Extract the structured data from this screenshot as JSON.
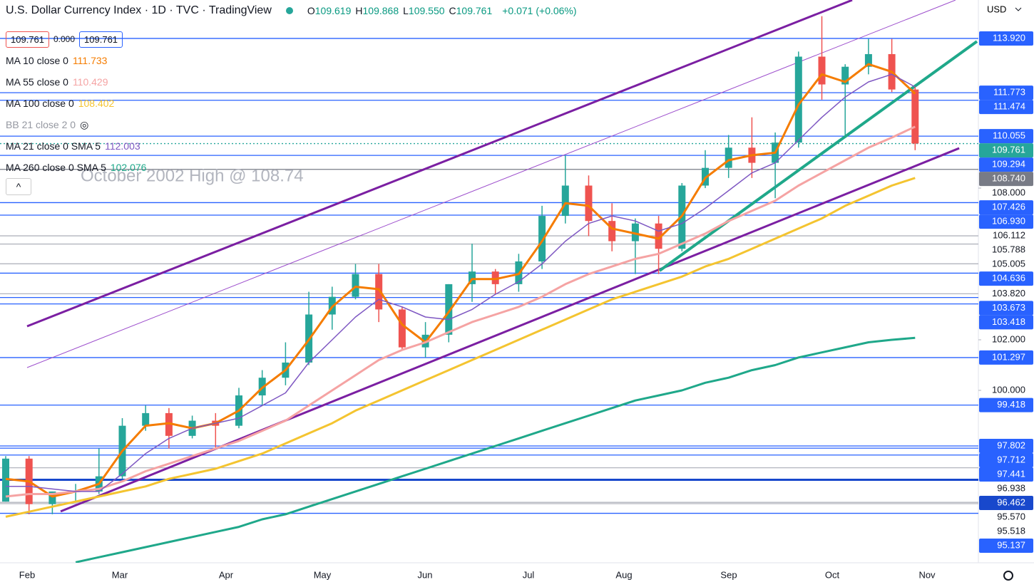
{
  "header": {
    "ohlc": [
      {
        "key": "O",
        "value": "109.619"
      },
      {
        "key": "H",
        "value": "109.868"
      },
      {
        "key": "L",
        "value": "109.550"
      },
      {
        "key": "C",
        "value": "109.761"
      }
    ],
    "change": "+0.071 (+0.06%)",
    "price_boxes": [
      "109.761",
      "0.000",
      "109.761"
    ],
    "currency": "USD",
    "extra_indicator": "BB 21 close 2 0"
  },
  "chart_data": {
    "type": "candlestick",
    "title": "U.S. Dollar Currency Index · 1D · TVC · TradingView",
    "annotation": "October 2002 High @ 108.74",
    "x_labels": [
      "Feb",
      "Mar",
      "Apr",
      "May",
      "Jun",
      "Jul",
      "Aug",
      "Sep",
      "Oct",
      "Nov"
    ],
    "candles": {
      "open": [
        95.6,
        97.3,
        95.5,
        96.0,
        96.0,
        96.6,
        98.6,
        99.1,
        98.2,
        98.8,
        98.6,
        99.8,
        100.5,
        101.1,
        103.0,
        103.7,
        104.6,
        103.2,
        101.7,
        102.2,
        104.2,
        104.7,
        104.2,
        105.1,
        106.9,
        108.1,
        106.7,
        105.9,
        106.6,
        105.6,
        108.1,
        108.8,
        109.6,
        109.0,
        109.8,
        113.2,
        112.1,
        112.8,
        113.3,
        111.9
      ],
      "high": [
        97.4,
        97.4,
        96.0,
        96.3,
        97.7,
        98.9,
        99.4,
        99.3,
        99.0,
        99.1,
        100.1,
        100.8,
        101.9,
        103.9,
        104.1,
        105.0,
        105.0,
        103.3,
        102.7,
        104.2,
        105.8,
        104.8,
        105.4,
        107.3,
        109.3,
        108.5,
        107.4,
        106.8,
        106.9,
        108.2,
        109.5,
        110.1,
        110.8,
        110.2,
        113.4,
        114.8,
        112.9,
        113.9,
        113.9,
        112.0
      ],
      "low": [
        95.6,
        95.1,
        95.1,
        95.6,
        95.9,
        96.5,
        98.4,
        97.7,
        98.1,
        97.7,
        98.5,
        99.4,
        100.2,
        101.0,
        102.4,
        103.6,
        102.7,
        101.6,
        101.3,
        101.9,
        103.5,
        103.8,
        103.9,
        104.8,
        106.6,
        106.1,
        105.5,
        104.6,
        104.6,
        105.5,
        108.0,
        108.4,
        108.4,
        107.6,
        109.6,
        111.5,
        110.1,
        112.5,
        111.8,
        109.5
      ],
      "close": [
        97.3,
        95.5,
        96.0,
        96.0,
        96.6,
        98.6,
        99.1,
        98.2,
        98.8,
        98.6,
        99.8,
        100.5,
        101.1,
        103.0,
        103.7,
        104.6,
        103.2,
        101.7,
        102.2,
        104.2,
        104.7,
        104.2,
        105.1,
        106.9,
        108.1,
        106.7,
        105.9,
        106.6,
        105.6,
        108.1,
        108.8,
        109.6,
        109.0,
        109.8,
        113.2,
        112.1,
        112.8,
        113.3,
        111.9,
        109.761
      ]
    },
    "up_color": "#26a69a",
    "down_color": "#ef5350",
    "series": [
      {
        "name": "MA 10 close 0",
        "color": "#f57c00",
        "width": 3,
        "values": [
          96.5,
          96.4,
          95.8,
          96.0,
          96.3,
          97.6,
          98.6,
          98.7,
          98.5,
          98.7,
          99.2,
          100.1,
          100.8,
          102.0,
          103.3,
          104.1,
          104.0,
          102.6,
          101.9,
          103.1,
          104.4,
          104.4,
          104.6,
          105.9,
          107.4,
          107.3,
          106.4,
          106.2,
          106.0,
          106.9,
          108.4,
          109.1,
          109.3,
          109.4,
          111.3,
          112.5,
          112.2,
          112.9,
          112.6,
          111.733
        ]
      },
      {
        "name": "MA 55 close 0",
        "color": "#f5a3a3",
        "width": 3,
        "values": [
          95.8,
          95.9,
          95.9,
          96.0,
          96.1,
          96.4,
          96.8,
          97.1,
          97.4,
          97.7,
          98.0,
          98.4,
          98.8,
          99.4,
          100.0,
          100.6,
          101.2,
          101.6,
          101.9,
          102.3,
          102.7,
          103.0,
          103.3,
          103.7,
          104.2,
          104.6,
          104.9,
          105.2,
          105.4,
          105.8,
          106.2,
          106.7,
          107.1,
          107.5,
          108.1,
          108.6,
          109.1,
          109.6,
          110.0,
          110.429
        ]
      },
      {
        "name": "MA 100 close 0",
        "color": "#f4c430",
        "width": 3,
        "values": [
          95.0,
          95.2,
          95.4,
          95.6,
          95.8,
          96.0,
          96.2,
          96.5,
          96.7,
          96.9,
          97.2,
          97.5,
          97.9,
          98.3,
          98.7,
          99.2,
          99.6,
          100.0,
          100.4,
          100.8,
          101.2,
          101.6,
          102.0,
          102.4,
          102.8,
          103.2,
          103.6,
          103.9,
          104.2,
          104.5,
          104.9,
          105.2,
          105.6,
          106.0,
          106.4,
          106.8,
          107.3,
          107.7,
          108.1,
          108.402
        ]
      },
      {
        "name": "MA 21 close 0 SMA 5",
        "color": "#7e57c2",
        "width": 1.5,
        "values": [
          96.2,
          96.2,
          96.1,
          96.0,
          96.0,
          96.7,
          97.5,
          98.1,
          98.5,
          98.7,
          98.9,
          99.4,
          99.9,
          101.1,
          102.0,
          102.9,
          103.6,
          103.3,
          102.9,
          102.8,
          103.2,
          103.8,
          104.3,
          105.0,
          105.9,
          106.6,
          106.9,
          106.7,
          106.3,
          106.6,
          107.2,
          107.9,
          108.6,
          109.0,
          109.9,
          110.8,
          111.6,
          112.2,
          112.5,
          112.003
        ]
      },
      {
        "name": "MA 260 close 0 SMA 5",
        "color": "#1fa88a",
        "width": 3,
        "values": [
          null,
          null,
          null,
          93.2,
          93.4,
          93.6,
          93.8,
          94.0,
          94.2,
          94.4,
          94.6,
          94.9,
          95.1,
          95.4,
          95.7,
          96.0,
          96.3,
          96.6,
          96.9,
          97.2,
          97.5,
          97.8,
          98.1,
          98.4,
          98.7,
          99.0,
          99.3,
          99.6,
          99.8,
          100.0,
          100.3,
          100.5,
          100.8,
          101.0,
          101.3,
          101.5,
          101.7,
          101.9,
          102.0,
          102.076
        ]
      }
    ],
    "trend_lines": [
      {
        "color": "#7b1fa2",
        "width": 3,
        "x": [
          0.917,
          36.3
        ],
        "values": [
          102.535,
          115.437
        ]
      },
      {
        "color": "#9c4dcc",
        "width": 1,
        "x": [
          0.917,
          40.73
        ],
        "values": [
          100.901,
          115.437
        ]
      },
      {
        "color": "#7b1fa2",
        "width": 3,
        "x": [
          2.355,
          40.89
        ],
        "values": [
          95.211,
          109.577
        ]
      },
      {
        "color": "#1fa88a",
        "width": 4,
        "x": [
          28.04,
          41.65
        ],
        "values": [
          104.732,
          113.803
        ]
      }
    ],
    "levels": [
      {
        "value": 113.92,
        "label": "113.920",
        "style": "blue"
      },
      {
        "value": 111.773,
        "label": "111.773",
        "style": "blue"
      },
      {
        "value": 111.474,
        "label": "111.474",
        "style": "blue"
      },
      {
        "value": 110.055,
        "label": "110.055",
        "style": "blue"
      },
      {
        "value": 109.761,
        "label": "109.761",
        "style": "current"
      },
      {
        "value": 109.294,
        "label": "109.294",
        "style": "blue"
      },
      {
        "value": 108.74,
        "label": "108.740",
        "style": "graybox"
      },
      {
        "value": 107.426,
        "label": "107.426",
        "style": "blue"
      },
      {
        "value": 106.93,
        "label": "106.930",
        "style": "blue"
      },
      {
        "value": 106.112,
        "label": "106.112",
        "style": "gray"
      },
      {
        "value": 105.788,
        "label": "105.788",
        "style": "gray"
      },
      {
        "value": 105.005,
        "label": "105.005",
        "style": "gray"
      },
      {
        "value": 104.636,
        "label": "104.636",
        "style": "blue"
      },
      {
        "value": 103.82,
        "label": "103.820",
        "style": "gray"
      },
      {
        "value": 103.673,
        "label": "103.673",
        "style": "blue"
      },
      {
        "value": 103.418,
        "label": "103.418",
        "style": "blue"
      },
      {
        "value": 101.297,
        "label": "101.297",
        "style": "blue"
      },
      {
        "value": 99.418,
        "label": "99.418",
        "style": "blue"
      },
      {
        "value": 97.802,
        "label": "97.802",
        "style": "blue"
      },
      {
        "value": 97.712,
        "label": "97.712",
        "style": "blue"
      },
      {
        "value": 97.441,
        "label": "97.441",
        "style": "blue"
      },
      {
        "value": 96.938,
        "label": "96.938",
        "style": "gray"
      },
      {
        "value": 96.462,
        "label": "96.462",
        "style": "dark"
      },
      {
        "value": 95.57,
        "label": "95.570",
        "style": "gray"
      },
      {
        "value": 95.518,
        "label": "95.518",
        "style": "gray"
      },
      {
        "value": 95.137,
        "label": "95.137",
        "style": "blue"
      }
    ],
    "ylim": [
      93.18,
      115.44
    ],
    "yticks": [
      {
        "value": 108,
        "label": "108.000"
      },
      {
        "value": 102,
        "label": "102.000"
      },
      {
        "value": 100,
        "label": "100.000"
      }
    ]
  }
}
